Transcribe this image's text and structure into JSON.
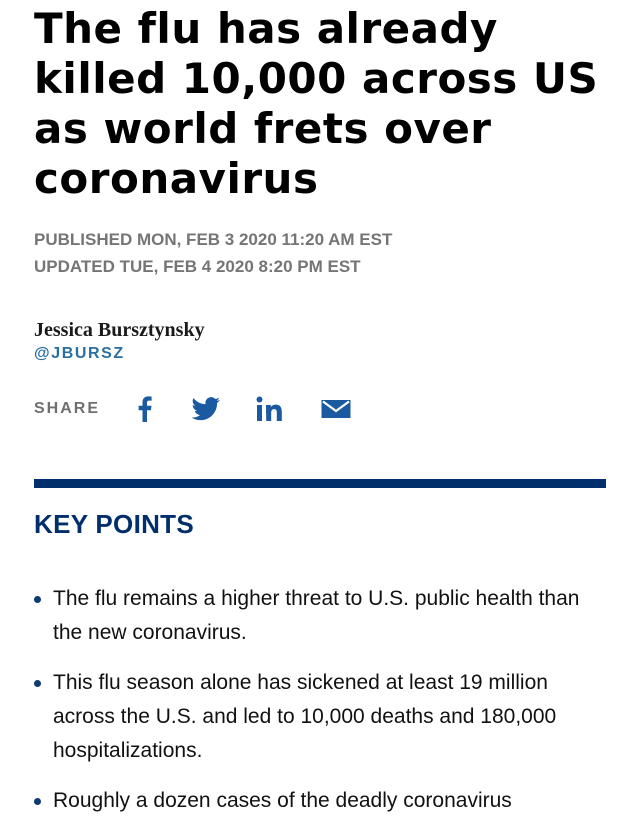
{
  "article": {
    "headline": "The flu has already killed 10,000 across US as world frets over coronavirus",
    "published": "PUBLISHED MON, FEB 3 2020 11:20 AM EST",
    "updated": "UPDATED TUE, FEB 4 2020 8:20 PM EST",
    "author": "Jessica Bursztynsky",
    "author_handle": "@JBURSZ"
  },
  "share": {
    "label": "SHARE",
    "icons": [
      "facebook-icon",
      "twitter-icon",
      "linkedin-icon",
      "email-icon"
    ]
  },
  "key_points": {
    "title": "KEY POINTS",
    "items": [
      "The flu remains a higher threat to U.S. public health than the new coronavirus.",
      "This flu season alone has sickened at least 19 million across the U.S. and led to 10,000 deaths and 180,000 hospitalizations.",
      "Roughly a dozen cases of the deadly coronavirus"
    ]
  },
  "colors": {
    "brand_navy": "#002f6c",
    "link_blue": "#2a6fa3",
    "meta_gray": "#757575"
  }
}
